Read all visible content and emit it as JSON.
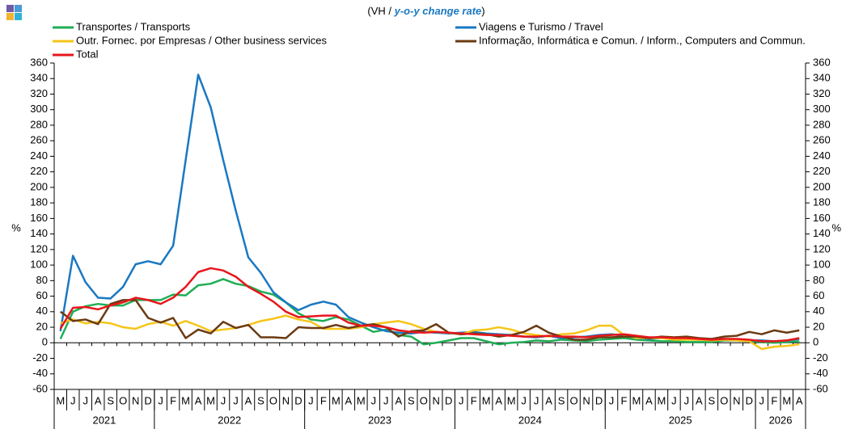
{
  "chart_data": {
    "type": "line",
    "title": "(VH /",
    "title_emphasis": "y-o-y change rate",
    "title_end": ")",
    "y_axis_label": "%",
    "y2_axis_label": "%",
    "categories": [
      "M",
      "J",
      "J",
      "A",
      "S",
      "O",
      "N",
      "D",
      "J",
      "F",
      "M",
      "A",
      "M",
      "J",
      "J",
      "A",
      "S",
      "O",
      "N",
      "D",
      "J",
      "F",
      "M",
      "A",
      "M",
      "J",
      "J",
      "A",
      "S",
      "O",
      "N",
      "D",
      "J",
      "F",
      "M",
      "A",
      "M",
      "J",
      "J",
      "A",
      "S",
      "O",
      "N",
      "D",
      "J",
      "F",
      "M",
      "A",
      "M",
      "J",
      "J",
      "A",
      "S",
      "O",
      "N",
      "D",
      "J",
      "F",
      "M",
      "A"
    ],
    "year_labels": [
      "2021",
      "2022",
      "2023",
      "2024",
      "2025",
      "2026"
    ],
    "ylim": [
      -60,
      360
    ],
    "yticks": [
      -60,
      -40,
      -20,
      0,
      20,
      40,
      60,
      80,
      100,
      120,
      140,
      160,
      180,
      200,
      220,
      240,
      260,
      280,
      300,
      320,
      340,
      360
    ],
    "y2lim": [
      -60,
      360
    ],
    "y2ticks": [
      -60,
      -40,
      -20,
      0,
      20,
      40,
      60,
      80,
      100,
      120,
      140,
      160,
      180,
      200,
      220,
      240,
      260,
      280,
      300,
      320,
      340,
      360
    ],
    "series": [
      {
        "name": "Transportes / Transports",
        "color": "#1fae55",
        "values": [
          5,
          40,
          47,
          50,
          48,
          48,
          55,
          55,
          55,
          62,
          61,
          74,
          76,
          82,
          76,
          73,
          66,
          62,
          52,
          38,
          30,
          28,
          33,
          30,
          22,
          14,
          17,
          10,
          8,
          -2,
          0,
          3,
          6,
          6,
          2,
          -2,
          0,
          1,
          3,
          2,
          4,
          3,
          2,
          4,
          5,
          6,
          4,
          3,
          2,
          2,
          1,
          1,
          1,
          3,
          3,
          2,
          1,
          0,
          1,
          2
        ]
      },
      {
        "name": "Viagens e Turismo / Travel",
        "color": "#1a78c2",
        "values": [
          15,
          112,
          78,
          58,
          57,
          72,
          101,
          105,
          101,
          125,
          235,
          345,
          303,
          235,
          170,
          110,
          90,
          65,
          52,
          42,
          49,
          53,
          49,
          33,
          26,
          20,
          15,
          13,
          12,
          14,
          13,
          12,
          13,
          14,
          12,
          11,
          10,
          8,
          7,
          9,
          6,
          7,
          8,
          10,
          11,
          9,
          6,
          5,
          6,
          6,
          5,
          4,
          5,
          5,
          4,
          3,
          3,
          2,
          3,
          5
        ]
      },
      {
        "name": "Outr. Fornec. por Empresas / Other business services",
        "color": "#f5c518",
        "values": [
          25,
          30,
          25,
          27,
          25,
          20,
          18,
          24,
          27,
          22,
          28,
          22,
          15,
          17,
          19,
          23,
          28,
          31,
          35,
          30,
          27,
          18,
          18,
          18,
          20,
          24,
          26,
          28,
          24,
          18,
          14,
          13,
          11,
          16,
          17,
          20,
          17,
          12,
          10,
          8,
          11,
          12,
          16,
          22,
          22,
          10,
          6,
          6,
          6,
          4,
          4,
          4,
          3,
          4,
          3,
          2,
          -8,
          -5,
          -4,
          -2
        ]
      },
      {
        "name": "Informação, Informática e Comun. / Inform., Computers and Commun.",
        "color": "#6b3a12",
        "values": [
          40,
          28,
          30,
          24,
          50,
          55,
          55,
          32,
          26,
          32,
          6,
          17,
          12,
          27,
          19,
          23,
          7,
          7,
          6,
          20,
          19,
          19,
          23,
          19,
          22,
          24,
          20,
          8,
          15,
          16,
          24,
          13,
          11,
          12,
          11,
          8,
          10,
          14,
          22,
          13,
          8,
          4,
          4,
          7,
          7,
          8,
          8,
          6,
          8,
          7,
          8,
          6,
          5,
          8,
          9,
          14,
          11,
          16,
          13,
          16
        ]
      },
      {
        "name": "Total",
        "color": "#e8161b",
        "values": [
          18,
          45,
          46,
          43,
          48,
          52,
          58,
          55,
          50,
          58,
          72,
          91,
          96,
          93,
          85,
          72,
          63,
          53,
          40,
          33,
          34,
          35,
          35,
          26,
          22,
          22,
          20,
          16,
          14,
          13,
          14,
          13,
          12,
          11,
          10,
          10,
          9,
          8,
          8,
          9,
          8,
          8,
          7,
          9,
          10,
          11,
          9,
          7,
          7,
          6,
          6,
          5,
          4,
          5,
          5,
          4,
          2,
          2,
          3,
          6
        ]
      }
    ]
  }
}
